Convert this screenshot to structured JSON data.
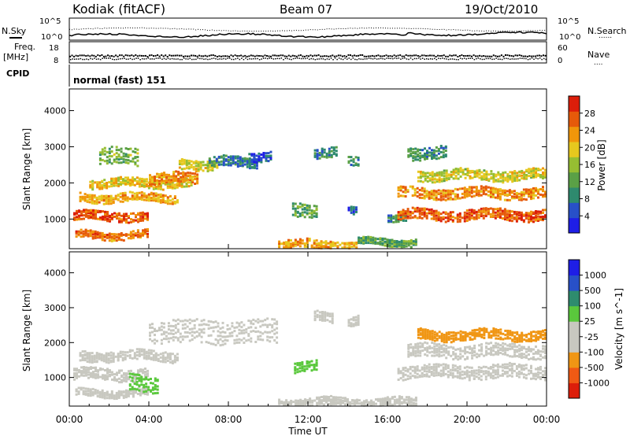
{
  "header": {
    "station": "Kodiak (fitACF)",
    "beam": "Beam 07",
    "date": "19/Oct/2010"
  },
  "strip_labels": {
    "nsky": "N.Sky",
    "nsearch": "N.Search",
    "nsearch_dots": "......",
    "freq_line1": "Freq.",
    "freq_line2": "[MHz]",
    "nave": "Nave",
    "nave_dots": "....",
    "cpid": "CPID",
    "cpid_value": "normal (fast) 151"
  },
  "strip_axes": {
    "noise_left_ticks": [
      "10^5",
      "10^0"
    ],
    "noise_right_ticks": [
      "10^5",
      "10^0"
    ],
    "freq_left_ticks": [
      "18",
      "8"
    ],
    "nave_right_ticks": [
      "60",
      "0"
    ]
  },
  "x_axis": {
    "label": "Time UT",
    "ticks": [
      "00:00",
      "04:00",
      "08:00",
      "12:00",
      "16:00",
      "20:00",
      "00:00"
    ],
    "range_hours": [
      0,
      24
    ]
  },
  "colors": {
    "power": [
      "#1e1ee6",
      "#2850c8",
      "#2e8a6e",
      "#5aa046",
      "#96be32",
      "#e6c81e",
      "#f0960a",
      "#e65a0a",
      "#dc1e0a"
    ],
    "velocity": [
      "#dc1e0a",
      "#f05a14",
      "#f09614",
      "#c8c8c0",
      "#c8c8c0",
      "#5ac83c",
      "#2e8c6e",
      "#2850c8",
      "#1e1ee6"
    ],
    "gray": "#c8c8c0"
  },
  "chart_data": [
    {
      "type": "heatmap",
      "name": "power",
      "ylabel": "Slant Range [km]",
      "yticks": [
        "1000",
        "2000",
        "3000",
        "4000"
      ],
      "ylim": [
        180,
        4600
      ],
      "xlim": [
        0,
        24
      ],
      "colorbar": {
        "label": "Power [dB]",
        "ticks": [
          "4",
          "8",
          "12",
          "16",
          "20",
          "24",
          "28"
        ],
        "range": [
          0,
          32
        ]
      },
      "features": [
        {
          "t0": 0.2,
          "t1": 4.0,
          "r0": 980,
          "r1": 1250,
          "v": 27
        },
        {
          "t0": 0.3,
          "t1": 4.0,
          "r0": 480,
          "r1": 700,
          "v": 25
        },
        {
          "t0": 0.5,
          "t1": 5.5,
          "r0": 1500,
          "r1": 1750,
          "v": 22
        },
        {
          "t0": 1.0,
          "t1": 6.2,
          "r0": 1900,
          "r1": 2150,
          "v": 20
        },
        {
          "t0": 1.5,
          "t1": 3.5,
          "r0": 2500,
          "r1": 3000,
          "v": 14
        },
        {
          "t0": 4.0,
          "t1": 6.5,
          "r0": 2000,
          "r1": 2300,
          "v": 24
        },
        {
          "t0": 5.5,
          "t1": 7.5,
          "r0": 2400,
          "r1": 2700,
          "v": 18
        },
        {
          "t0": 7.0,
          "t1": 9.5,
          "r0": 2450,
          "r1": 2750,
          "v": 8
        },
        {
          "t0": 9.0,
          "t1": 10.2,
          "r0": 2650,
          "r1": 2900,
          "v": 5
        },
        {
          "t0": 11.2,
          "t1": 12.5,
          "r0": 1100,
          "r1": 1500,
          "v": 12
        },
        {
          "t0": 12.3,
          "t1": 13.5,
          "r0": 2700,
          "r1": 3000,
          "v": 8
        },
        {
          "t0": 14.0,
          "t1": 14.6,
          "r0": 2550,
          "r1": 2800,
          "v": 10
        },
        {
          "t0": 14.0,
          "t1": 14.5,
          "r0": 1200,
          "r1": 1450,
          "v": 6
        },
        {
          "t0": 10.5,
          "t1": 14.5,
          "r0": 200,
          "r1": 450,
          "v": 22
        },
        {
          "t0": 14.5,
          "t1": 17.5,
          "r0": 300,
          "r1": 500,
          "v": 12
        },
        {
          "t0": 16.0,
          "t1": 17.0,
          "r0": 1000,
          "r1": 1200,
          "v": 10
        },
        {
          "t0": 16.5,
          "t1": 24.0,
          "r0": 1000,
          "r1": 1300,
          "v": 27
        },
        {
          "t0": 16.5,
          "t1": 24.0,
          "r0": 1600,
          "r1": 1900,
          "v": 24
        },
        {
          "t0": 17.5,
          "t1": 24.0,
          "r0": 2100,
          "r1": 2400,
          "v": 18
        },
        {
          "t0": 17.0,
          "t1": 19.0,
          "r0": 2700,
          "r1": 3050,
          "v": 10
        }
      ]
    },
    {
      "type": "heatmap",
      "name": "velocity",
      "ylabel": "Slant Range [km]",
      "yticks": [
        "1000",
        "2000",
        "3000",
        "4000"
      ],
      "ylim": [
        180,
        4600
      ],
      "xlim": [
        0,
        24
      ],
      "colorbar": {
        "label": "Velocity [m s^-1]",
        "ticks": [
          "-1000",
          "-500",
          "-100",
          "-25",
          "25",
          "100",
          "500",
          "1000"
        ]
      },
      "features": [
        {
          "t0": 0.2,
          "t1": 4.0,
          "r0": 950,
          "r1": 1300,
          "v": 0
        },
        {
          "t0": 0.3,
          "t1": 4.0,
          "r0": 480,
          "r1": 700,
          "v": 0
        },
        {
          "t0": 0.5,
          "t1": 5.5,
          "r0": 1500,
          "r1": 1800,
          "v": 0
        },
        {
          "t0": 3.0,
          "t1": 4.5,
          "r0": 600,
          "r1": 1100,
          "v": 150
        },
        {
          "t0": 4.0,
          "t1": 10.5,
          "r0": 2000,
          "r1": 2700,
          "v": 0
        },
        {
          "t0": 11.3,
          "t1": 12.5,
          "r0": 1200,
          "r1": 1500,
          "v": 150
        },
        {
          "t0": 12.3,
          "t1": 13.3,
          "r0": 2600,
          "r1": 2900,
          "v": 0
        },
        {
          "t0": 14.0,
          "t1": 14.6,
          "r0": 2500,
          "r1": 2800,
          "v": 0
        },
        {
          "t0": 16.5,
          "t1": 24.0,
          "r0": 1000,
          "r1": 1400,
          "v": 0
        },
        {
          "t0": 17.0,
          "t1": 24.0,
          "r0": 1600,
          "r1": 2000,
          "v": 0
        },
        {
          "t0": 17.5,
          "t1": 24.0,
          "r0": 2100,
          "r1": 2400,
          "v": -150
        },
        {
          "t0": 10.5,
          "t1": 17.5,
          "r0": 200,
          "r1": 450,
          "v": 0
        }
      ]
    }
  ]
}
